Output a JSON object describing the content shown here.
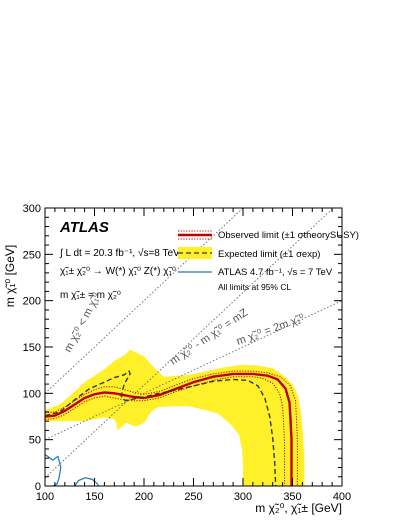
{
  "chart_data": {
    "type": "line",
    "experiment": "ATLAS",
    "lumi_label": "∫ L dt = 20.3 fb⁻¹, √s=8 TeV",
    "process_label": "χ̃₁± χ̃₂⁰ → W(*) χ̃₁⁰ Z(*) χ̃₁⁰",
    "mass_assumption": "m χ̃₁± = m χ̃₂⁰",
    "xlabel": "m χ̃₂⁰, χ̃₁± [GeV]",
    "ylabel": "m χ̃₁⁰ [GeV]",
    "xlim": [
      100,
      400
    ],
    "ylim": [
      0,
      300
    ],
    "x_ticks": [
      100,
      150,
      200,
      250,
      300,
      350,
      400
    ],
    "y_ticks": [
      0,
      50,
      100,
      150,
      200,
      250,
      300
    ],
    "legend_position": "top-right",
    "legend": {
      "observed": "Observed limit (±1 σtheorySUSY)",
      "expected": "Expected limit (±1 σexp)",
      "atlas7": "ATLAS 4.7 fb⁻¹, √s = 7 TeV",
      "note": "All limits at 95% CL"
    },
    "kinematic_labels": [
      "m χ̃₂⁰ < m χ̃₁⁰",
      "m χ̃₂⁰ - m χ̃₁⁰ = mZ",
      "m χ̃₂⁰ = 2m χ̃₁⁰"
    ],
    "colors": {
      "observed": "#c00000",
      "expected": "#333333",
      "band": "#fff02a",
      "atlas7": "#1f77b4"
    },
    "series": [
      {
        "name": "Observed limit",
        "points": [
          [
            100,
            75
          ],
          [
            110,
            76
          ],
          [
            120,
            81
          ],
          [
            130,
            88
          ],
          [
            140,
            95
          ],
          [
            150,
            99
          ],
          [
            160,
            101
          ],
          [
            170,
            100
          ],
          [
            180,
            98
          ],
          [
            190,
            96
          ],
          [
            200,
            95
          ],
          [
            215,
            98
          ],
          [
            230,
            104
          ],
          [
            250,
            112
          ],
          [
            270,
            118
          ],
          [
            290,
            121
          ],
          [
            310,
            121
          ],
          [
            325,
            119
          ],
          [
            335,
            115
          ],
          [
            343,
            105
          ],
          [
            347,
            90
          ],
          [
            348,
            72
          ],
          [
            349,
            50
          ],
          [
            349,
            25
          ],
          [
            349,
            0
          ]
        ]
      },
      {
        "name": "Observed limit +1σ",
        "points": [
          [
            100,
            79
          ],
          [
            110,
            80
          ],
          [
            120,
            85
          ],
          [
            130,
            92
          ],
          [
            140,
            99
          ],
          [
            150,
            104
          ],
          [
            160,
            107
          ],
          [
            170,
            107
          ],
          [
            180,
            104
          ],
          [
            190,
            101
          ],
          [
            200,
            99
          ],
          [
            215,
            102
          ],
          [
            230,
            108
          ],
          [
            250,
            116
          ],
          [
            270,
            121
          ],
          [
            290,
            124
          ],
          [
            310,
            124
          ],
          [
            325,
            122
          ],
          [
            338,
            118
          ],
          [
            348,
            108
          ],
          [
            353,
            92
          ],
          [
            354,
            72
          ],
          [
            355,
            50
          ],
          [
            355,
            25
          ],
          [
            355,
            0
          ]
        ]
      },
      {
        "name": "Observed limit -1σ",
        "points": [
          [
            100,
            72
          ],
          [
            110,
            73
          ],
          [
            120,
            77
          ],
          [
            130,
            84
          ],
          [
            140,
            91
          ],
          [
            150,
            95
          ],
          [
            160,
            97
          ],
          [
            170,
            95
          ],
          [
            180,
            93
          ],
          [
            190,
            92
          ],
          [
            200,
            92
          ],
          [
            215,
            95
          ],
          [
            230,
            101
          ],
          [
            250,
            108
          ],
          [
            270,
            114
          ],
          [
            290,
            118
          ],
          [
            310,
            118
          ],
          [
            320,
            116
          ],
          [
            330,
            111
          ],
          [
            337,
            100
          ],
          [
            340,
            85
          ],
          [
            341,
            68
          ],
          [
            342,
            45
          ],
          [
            342,
            20
          ],
          [
            342,
            0
          ]
        ]
      },
      {
        "name": "Expected limit",
        "points": [
          [
            100,
            76
          ],
          [
            115,
            80
          ],
          [
            130,
            93
          ],
          [
            145,
            105
          ],
          [
            160,
            112
          ],
          [
            170,
            117
          ],
          [
            180,
            120
          ],
          [
            185,
            124
          ],
          [
            186,
            121
          ],
          [
            180,
            110
          ],
          [
            177,
            97
          ],
          [
            181,
            92
          ],
          [
            190,
            94
          ],
          [
            200,
            96
          ],
          [
            215,
            100
          ],
          [
            230,
            103
          ],
          [
            250,
            108
          ],
          [
            270,
            113
          ],
          [
            290,
            115
          ],
          [
            305,
            114
          ],
          [
            315,
            108
          ],
          [
            322,
            95
          ],
          [
            327,
            75
          ],
          [
            330,
            52
          ],
          [
            332,
            25
          ],
          [
            333,
            0
          ]
        ]
      },
      {
        "name": "ATLAS 4.7 fb⁻¹, √s = 7 TeV",
        "points": [
          [
            100,
            34
          ],
          [
            104,
            31
          ],
          [
            108,
            28
          ],
          [
            113,
            32
          ],
          [
            116,
            20
          ],
          [
            114,
            8
          ],
          [
            112,
            2
          ],
          [
            108,
            0
          ]
        ]
      },
      {
        "name": "ATLAS 4.7 fb⁻¹, √s = 7 TeV (2)",
        "points": [
          [
            130,
            0
          ],
          [
            134,
            6
          ],
          [
            141,
            9
          ],
          [
            148,
            7
          ],
          [
            153,
            2
          ],
          [
            154,
            0
          ]
        ]
      }
    ],
    "band": {
      "name": "Expected limit ±1σexp",
      "upper": [
        [
          100,
          82
        ],
        [
          115,
          88
        ],
        [
          125,
          97
        ],
        [
          140,
          112
        ],
        [
          160,
          126
        ],
        [
          170,
          135
        ],
        [
          180,
          141
        ],
        [
          186,
          147
        ],
        [
          200,
          140
        ],
        [
          210,
          128
        ],
        [
          220,
          118
        ],
        [
          240,
          119
        ],
        [
          260,
          123
        ],
        [
          280,
          128
        ],
        [
          300,
          131
        ],
        [
          315,
          130
        ],
        [
          330,
          127
        ],
        [
          340,
          120
        ],
        [
          350,
          110
        ],
        [
          356,
          96
        ],
        [
          359,
          75
        ],
        [
          361,
          50
        ],
        [
          362,
          25
        ],
        [
          362,
          0
        ]
      ],
      "lower": [
        [
          300,
          0
        ],
        [
          300,
          20
        ],
        [
          299,
          40
        ],
        [
          296,
          55
        ],
        [
          288,
          66
        ],
        [
          275,
          78
        ],
        [
          262,
          82
        ],
        [
          245,
          86
        ],
        [
          230,
          86
        ],
        [
          214,
          85
        ],
        [
          207,
          80
        ],
        [
          200,
          68
        ],
        [
          192,
          64
        ],
        [
          182,
          68
        ],
        [
          173,
          60
        ],
        [
          172,
          68
        ],
        [
          170,
          72
        ],
        [
          160,
          74
        ],
        [
          150,
          72
        ],
        [
          140,
          70
        ],
        [
          120,
          70
        ],
        [
          100,
          70
        ]
      ]
    }
  }
}
